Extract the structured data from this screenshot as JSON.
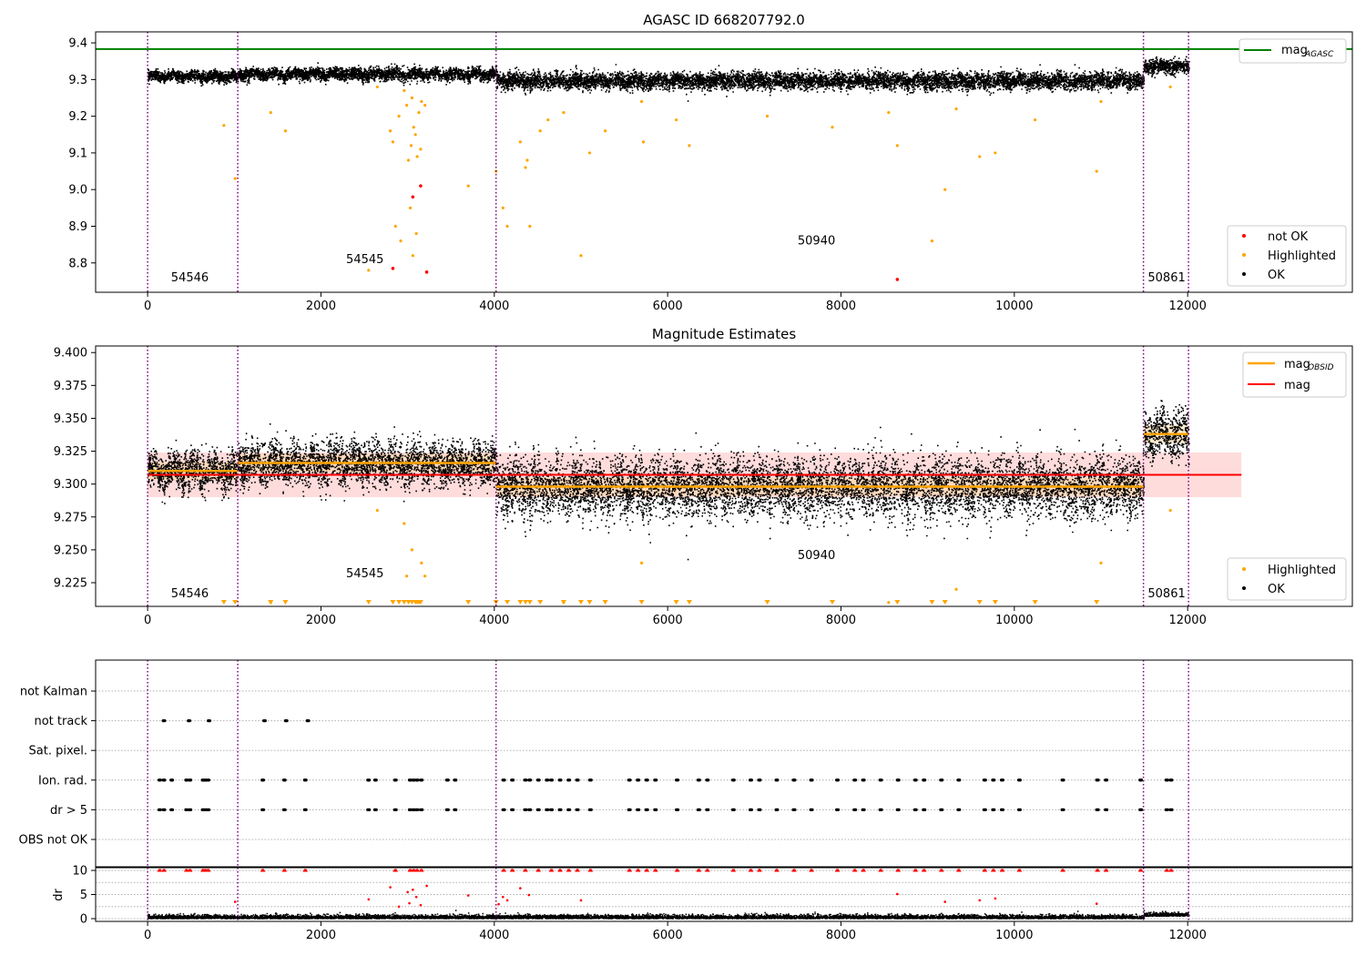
{
  "figure": {
    "title": "AGASC ID 668207792.0",
    "xticks": [
      0,
      2000,
      4000,
      6000,
      8000,
      10000,
      12000
    ],
    "xtick_labels": [
      "0",
      "2000",
      "4000",
      "6000",
      "8000",
      "10000",
      "12000"
    ],
    "xlim": [
      -600,
      13900
    ]
  },
  "chart_data": [
    {
      "id": "top",
      "type": "scatter",
      "title": "AGASC ID 668207792.0",
      "xlim": [
        -600,
        13900
      ],
      "ylim": [
        8.72,
        9.43
      ],
      "yticks": [
        9.4,
        9.3,
        9.2,
        9.1,
        9.0,
        8.9,
        8.8
      ],
      "ytick_labels": [
        "9.4",
        "9.3",
        "9.2",
        "9.1",
        "9.0",
        "8.9",
        "8.8"
      ],
      "grid": false,
      "mag_agasc": 9.383,
      "obs_boundaries": [
        0,
        1040,
        4020,
        11490,
        12010
      ],
      "segments": [
        {
          "start": 0,
          "end": 1040,
          "mean": 9.31,
          "noise": 0.007
        },
        {
          "start": 1040,
          "end": 4020,
          "mean": 9.316,
          "noise": 0.008
        },
        {
          "start": 4020,
          "end": 11490,
          "mean": 9.298,
          "noise": 0.011
        },
        {
          "start": 11490,
          "end": 12010,
          "mean": 9.338,
          "noise": 0.009
        }
      ],
      "annotations": [
        {
          "text": "54546",
          "x": 270,
          "y": 8.75
        },
        {
          "text": "54545",
          "x": 2290,
          "y": 8.8
        },
        {
          "text": "50940",
          "x": 7500,
          "y": 8.85
        },
        {
          "text": "50861",
          "x": 11540,
          "y": 8.75
        }
      ],
      "highlighted_points": [
        [
          880,
          9.175
        ],
        [
          1010,
          9.03
        ],
        [
          1420,
          9.21
        ],
        [
          1590,
          9.16
        ],
        [
          2550,
          8.78
        ],
        [
          2650,
          9.28
        ],
        [
          2800,
          9.16
        ],
        [
          2830,
          9.13
        ],
        [
          2860,
          8.9
        ],
        [
          2900,
          9.2
        ],
        [
          2920,
          8.86
        ],
        [
          2960,
          9.27
        ],
        [
          2990,
          9.23
        ],
        [
          3010,
          9.08
        ],
        [
          3030,
          8.95
        ],
        [
          3040,
          9.12
        ],
        [
          3050,
          9.25
        ],
        [
          3060,
          8.82
        ],
        [
          3070,
          9.17
        ],
        [
          3090,
          9.15
        ],
        [
          3100,
          8.88
        ],
        [
          3110,
          9.09
        ],
        [
          3130,
          9.21
        ],
        [
          3150,
          9.11
        ],
        [
          3160,
          9.24
        ],
        [
          3200,
          9.23
        ],
        [
          3700,
          9.01
        ],
        [
          4020,
          9.05
        ],
        [
          4100,
          8.95
        ],
        [
          4150,
          8.9
        ],
        [
          4300,
          9.13
        ],
        [
          4360,
          9.06
        ],
        [
          4380,
          9.08
        ],
        [
          4410,
          8.9
        ],
        [
          4530,
          9.16
        ],
        [
          4620,
          9.19
        ],
        [
          4800,
          9.21
        ],
        [
          5000,
          8.82
        ],
        [
          5100,
          9.1
        ],
        [
          5280,
          9.16
        ],
        [
          5700,
          9.24
        ],
        [
          5720,
          9.13
        ],
        [
          6100,
          9.19
        ],
        [
          6250,
          9.12
        ],
        [
          7150,
          9.2
        ],
        [
          7900,
          9.17
        ],
        [
          8550,
          9.21
        ],
        [
          8650,
          9.12
        ],
        [
          9050,
          8.86
        ],
        [
          9200,
          9.0
        ],
        [
          9330,
          9.22
        ],
        [
          9600,
          9.09
        ],
        [
          9780,
          9.1
        ],
        [
          10240,
          9.19
        ],
        [
          10950,
          9.05
        ],
        [
          11000,
          9.24
        ],
        [
          11800,
          9.28
        ]
      ],
      "not_ok_points": [
        [
          2830,
          8.785
        ],
        [
          3060,
          8.98
        ],
        [
          3150,
          9.01
        ],
        [
          3220,
          8.775
        ],
        [
          8650,
          8.755
        ]
      ],
      "legend": {
        "position": "lower right",
        "items": [
          "not OK",
          "Highlighted",
          "OK"
        ]
      },
      "legend_top": {
        "position": "upper right",
        "items": [
          "mag_AGASC"
        ]
      }
    },
    {
      "id": "middle",
      "type": "scatter",
      "title": "Magnitude Estimates",
      "xlim": [
        -600,
        13900
      ],
      "ylim": [
        9.207,
        9.405
      ],
      "yticks": [
        9.4,
        9.375,
        9.35,
        9.325,
        9.3,
        9.275,
        9.25,
        9.225
      ],
      "ytick_labels": [
        "9.400",
        "9.375",
        "9.350",
        "9.325",
        "9.300",
        "9.275",
        "9.250",
        "9.225"
      ],
      "grid": false,
      "mag": 9.307,
      "mag_band": [
        9.29,
        9.324
      ],
      "mag_band_x": [
        0,
        12620
      ],
      "obsid_levels": [
        {
          "start": 0,
          "end": 1040,
          "mag": 9.31
        },
        {
          "start": 1040,
          "end": 4020,
          "mag": 9.316
        },
        {
          "start": 4020,
          "end": 11490,
          "mag": 9.298
        },
        {
          "start": 11490,
          "end": 12010,
          "mag": 9.338
        }
      ],
      "annotations": [
        {
          "text": "54546",
          "x": 270,
          "y": 9.214
        },
        {
          "text": "54545",
          "x": 2290,
          "y": 9.229
        },
        {
          "text": "50940",
          "x": 7500,
          "y": 9.243
        },
        {
          "text": "50861",
          "x": 11540,
          "y": 9.214
        }
      ],
      "clipped_markers_x": [
        880,
        1010,
        1420,
        1590,
        2550,
        2830,
        2900,
        2960,
        3010,
        3050,
        3090,
        3110,
        3150,
        3700,
        4020,
        4150,
        4300,
        4360,
        4410,
        4530,
        4800,
        5000,
        5100,
        5280,
        5700,
        6100,
        6250,
        7150,
        7900,
        8650,
        9050,
        9200,
        9600,
        9780,
        10240,
        10950
      ],
      "legend": {
        "position": "lower right",
        "items": [
          "Highlighted",
          "OK"
        ]
      },
      "legend_top": {
        "position": "upper right",
        "items": [
          "mag_OBSID",
          "mag"
        ]
      }
    },
    {
      "id": "flags",
      "type": "scatter",
      "xlim": [
        -600,
        13900
      ],
      "categories": [
        "not Kalman",
        "not track",
        "Sat. pixel.",
        "Ion. rad.",
        "dr > 5",
        "OBS not OK"
      ],
      "grid": true,
      "not_track_x": [
        180,
        470,
        700,
        1340,
        1590,
        1840
      ],
      "ion_rad_x": [
        130,
        180,
        270,
        440,
        480,
        630,
        660,
        690,
        1320,
        1570,
        1810,
        2540,
        2620,
        2850,
        3020,
        3060,
        3100,
        3150,
        3450,
        3540,
        4100,
        4200,
        4350,
        4400,
        4500,
        4600,
        4650,
        4750,
        4850,
        4950,
        5100,
        5550,
        5650,
        5750,
        5850,
        6100,
        6350,
        6450,
        6750,
        6950,
        7050,
        7250,
        7450,
        7650,
        7950,
        8150,
        8250,
        8450,
        8650,
        8850,
        8950,
        9150,
        9350,
        9650,
        9750,
        9850,
        10050,
        10550,
        10950,
        11050,
        11450,
        11750,
        11800
      ],
      "dr5_x": [
        130,
        180,
        270,
        440,
        480,
        630,
        660,
        690,
        1320,
        1570,
        1810,
        2540,
        2620,
        2850,
        3020,
        3060,
        3100,
        3150,
        3450,
        3540,
        4100,
        4200,
        4350,
        4400,
        4500,
        4600,
        4650,
        4750,
        4850,
        4950,
        5100,
        5550,
        5650,
        5750,
        5850,
        6100,
        6350,
        6450,
        6750,
        6950,
        7050,
        7250,
        7450,
        7650,
        7950,
        8150,
        8250,
        8450,
        8650,
        8850,
        8950,
        9150,
        9350,
        9650,
        9750,
        9850,
        10050,
        10550,
        10950,
        11050,
        11450,
        11750,
        11800
      ]
    },
    {
      "id": "dr",
      "type": "scatter",
      "xlim": [
        -600,
        13900
      ],
      "ylim": [
        0,
        10
      ],
      "ylabel": "dr",
      "yticks": [
        0,
        5,
        10
      ],
      "ytick_labels": [
        "0",
        "5",
        "10"
      ],
      "grid": true,
      "outliers": [
        [
          1010,
          3.5
        ],
        [
          2550,
          4.0
        ],
        [
          2800,
          6.5
        ],
        [
          2900,
          2.5
        ],
        [
          3000,
          5.5
        ],
        [
          3020,
          3.2
        ],
        [
          3060,
          6.0
        ],
        [
          3100,
          4.5
        ],
        [
          3150,
          2.8
        ],
        [
          3220,
          6.8
        ],
        [
          3700,
          4.8
        ],
        [
          4050,
          3.0
        ],
        [
          4100,
          4.5
        ],
        [
          4150,
          3.8
        ],
        [
          4300,
          6.3
        ],
        [
          4400,
          4.9
        ],
        [
          5000,
          3.8
        ],
        [
          8650,
          5.1
        ],
        [
          9200,
          3.5
        ],
        [
          9600,
          3.8
        ],
        [
          9780,
          4.2
        ],
        [
          10950,
          3.1
        ]
      ],
      "clipped_x": [
        130,
        180,
        440,
        480,
        630,
        660,
        690,
        1320,
        1570,
        1810,
        2850,
        3020,
        3060,
        3100,
        3150,
        4100,
        4200,
        4350,
        4500,
        4650,
        4750,
        4850,
        4950,
        5100,
        5550,
        5650,
        5750,
        5850,
        6100,
        6350,
        6450,
        6750,
        6950,
        7050,
        7250,
        7450,
        7650,
        7950,
        8150,
        8250,
        8450,
        8650,
        8850,
        8950,
        9150,
        9350,
        9650,
        9750,
        9850,
        10050,
        10550,
        10950,
        11050,
        11450,
        11750,
        11800
      ]
    }
  ],
  "legends": {
    "top_upper": [
      "mag"
    ],
    "top_upper_sub": [
      "AGASC"
    ],
    "top_lower": [
      "not OK",
      "Highlighted",
      "OK"
    ],
    "middle_upper": [
      "mag",
      "mag"
    ],
    "middle_upper_sub": [
      "OBSID"
    ],
    "middle_lower": [
      "Highlighted",
      "OK"
    ]
  },
  "colors": {
    "ok": "#000000",
    "highlighted": "#ffa500",
    "not_ok": "#ff0000",
    "mag_agasc": "#008000",
    "mag": "#ff0000",
    "mag_obsid": "#ffa500",
    "obs_boundary": "#800080",
    "mag_band": "#ffc0c0"
  }
}
